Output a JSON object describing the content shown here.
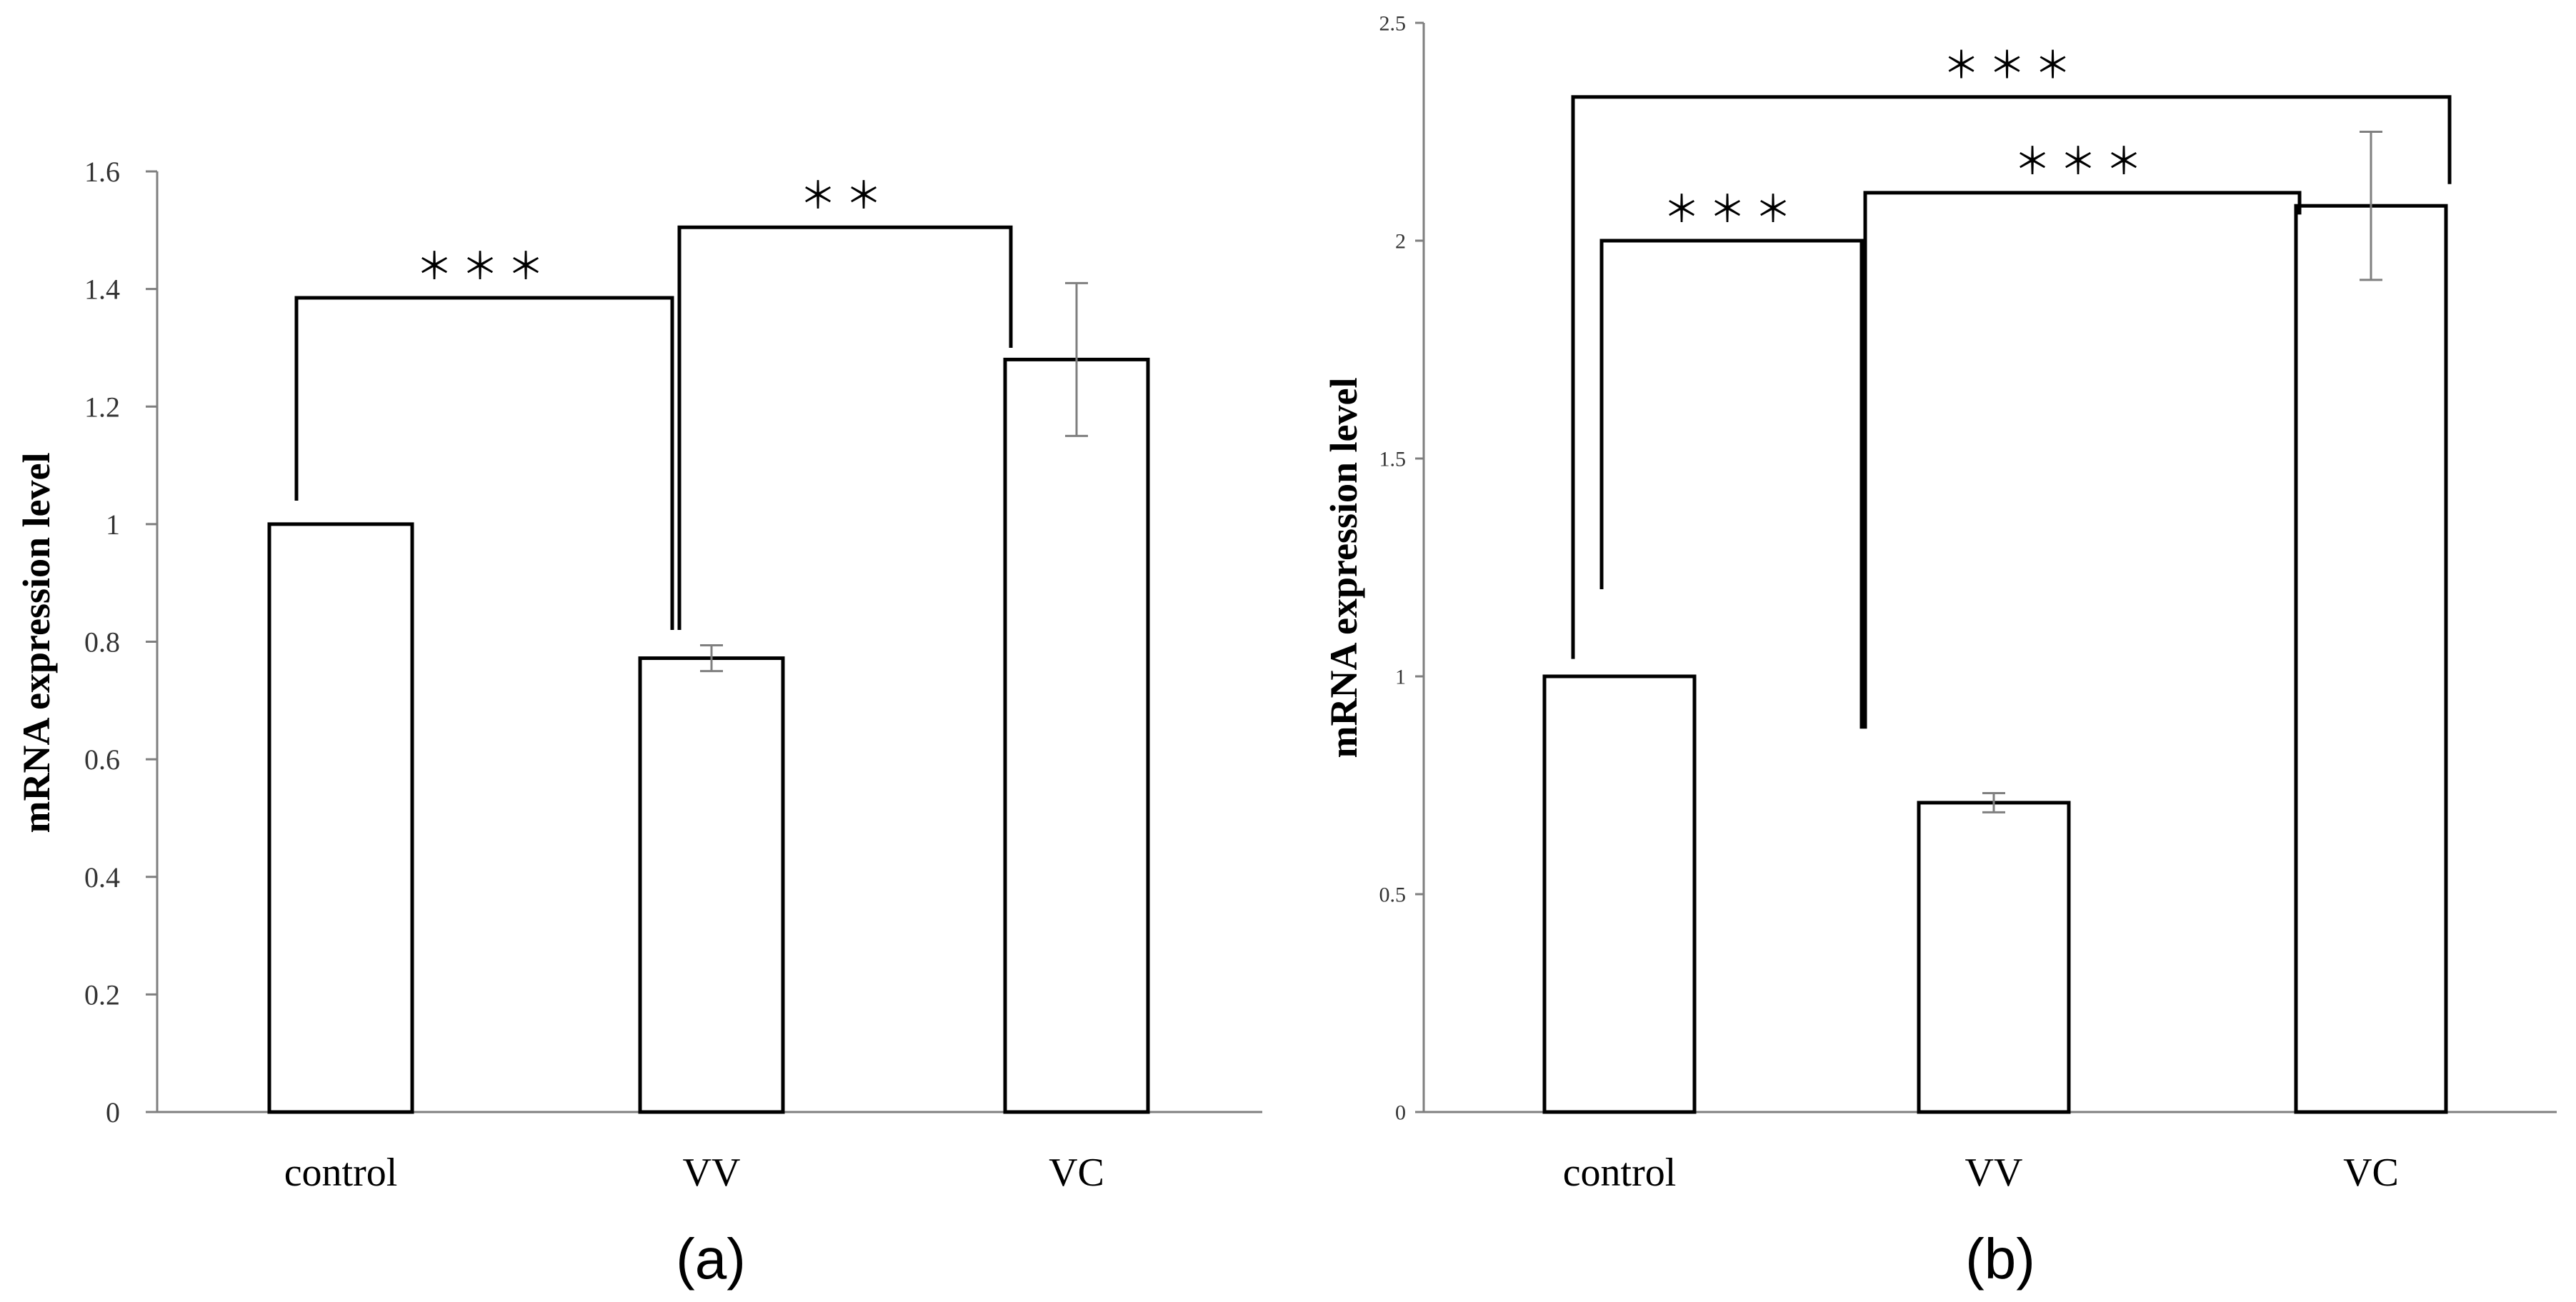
{
  "chart_data": [
    {
      "type": "bar",
      "panel_label": "(a)",
      "categories": [
        "control",
        "VV",
        "VC"
      ],
      "values": [
        1.0,
        0.772,
        1.28
      ],
      "errors": [
        0.0,
        0.022,
        0.13
      ],
      "title": "",
      "xlabel": "",
      "ylabel": "mRNA expression level",
      "ylim": [
        0,
        1.6
      ],
      "yticks": [
        0,
        0.2,
        0.4,
        0.6,
        0.8,
        1.0,
        1.2,
        1.4,
        1.6
      ],
      "ytick_labels": [
        "0",
        "0.2",
        "0.4",
        "0.6",
        "0.8",
        "1",
        "1.2",
        "1.4",
        "1.6"
      ],
      "grid": false,
      "significance": [
        {
          "from": "control",
          "to": "VV",
          "level": 1.385,
          "label": "＊＊＊"
        },
        {
          "from": "VV",
          "to": "VC",
          "level": 1.505,
          "label": "＊＊"
        }
      ]
    },
    {
      "type": "bar",
      "panel_label": "(b)",
      "categories": [
        "control",
        "VV",
        "VC"
      ],
      "values": [
        1.0,
        0.71,
        2.08
      ],
      "errors": [
        0.0,
        0.022,
        0.17
      ],
      "title": "",
      "xlabel": "",
      "ylabel": "mRNA expression level",
      "ylim": [
        0,
        2.5
      ],
      "yticks": [
        0,
        0.5,
        1.0,
        1.5,
        2.0,
        2.5
      ],
      "ytick_labels": [
        "0",
        "0.5",
        "1",
        "1.5",
        "2",
        "2.5"
      ],
      "grid": false,
      "significance": [
        {
          "from": "control",
          "to": "VV",
          "level": 2.0,
          "label": "＊＊＊"
        },
        {
          "from": "VV",
          "to": "VC",
          "level": 2.11,
          "label": "＊＊＊"
        },
        {
          "from": "control",
          "to": "VC",
          "level": 2.33,
          "label": "＊＊＊"
        }
      ]
    }
  ]
}
